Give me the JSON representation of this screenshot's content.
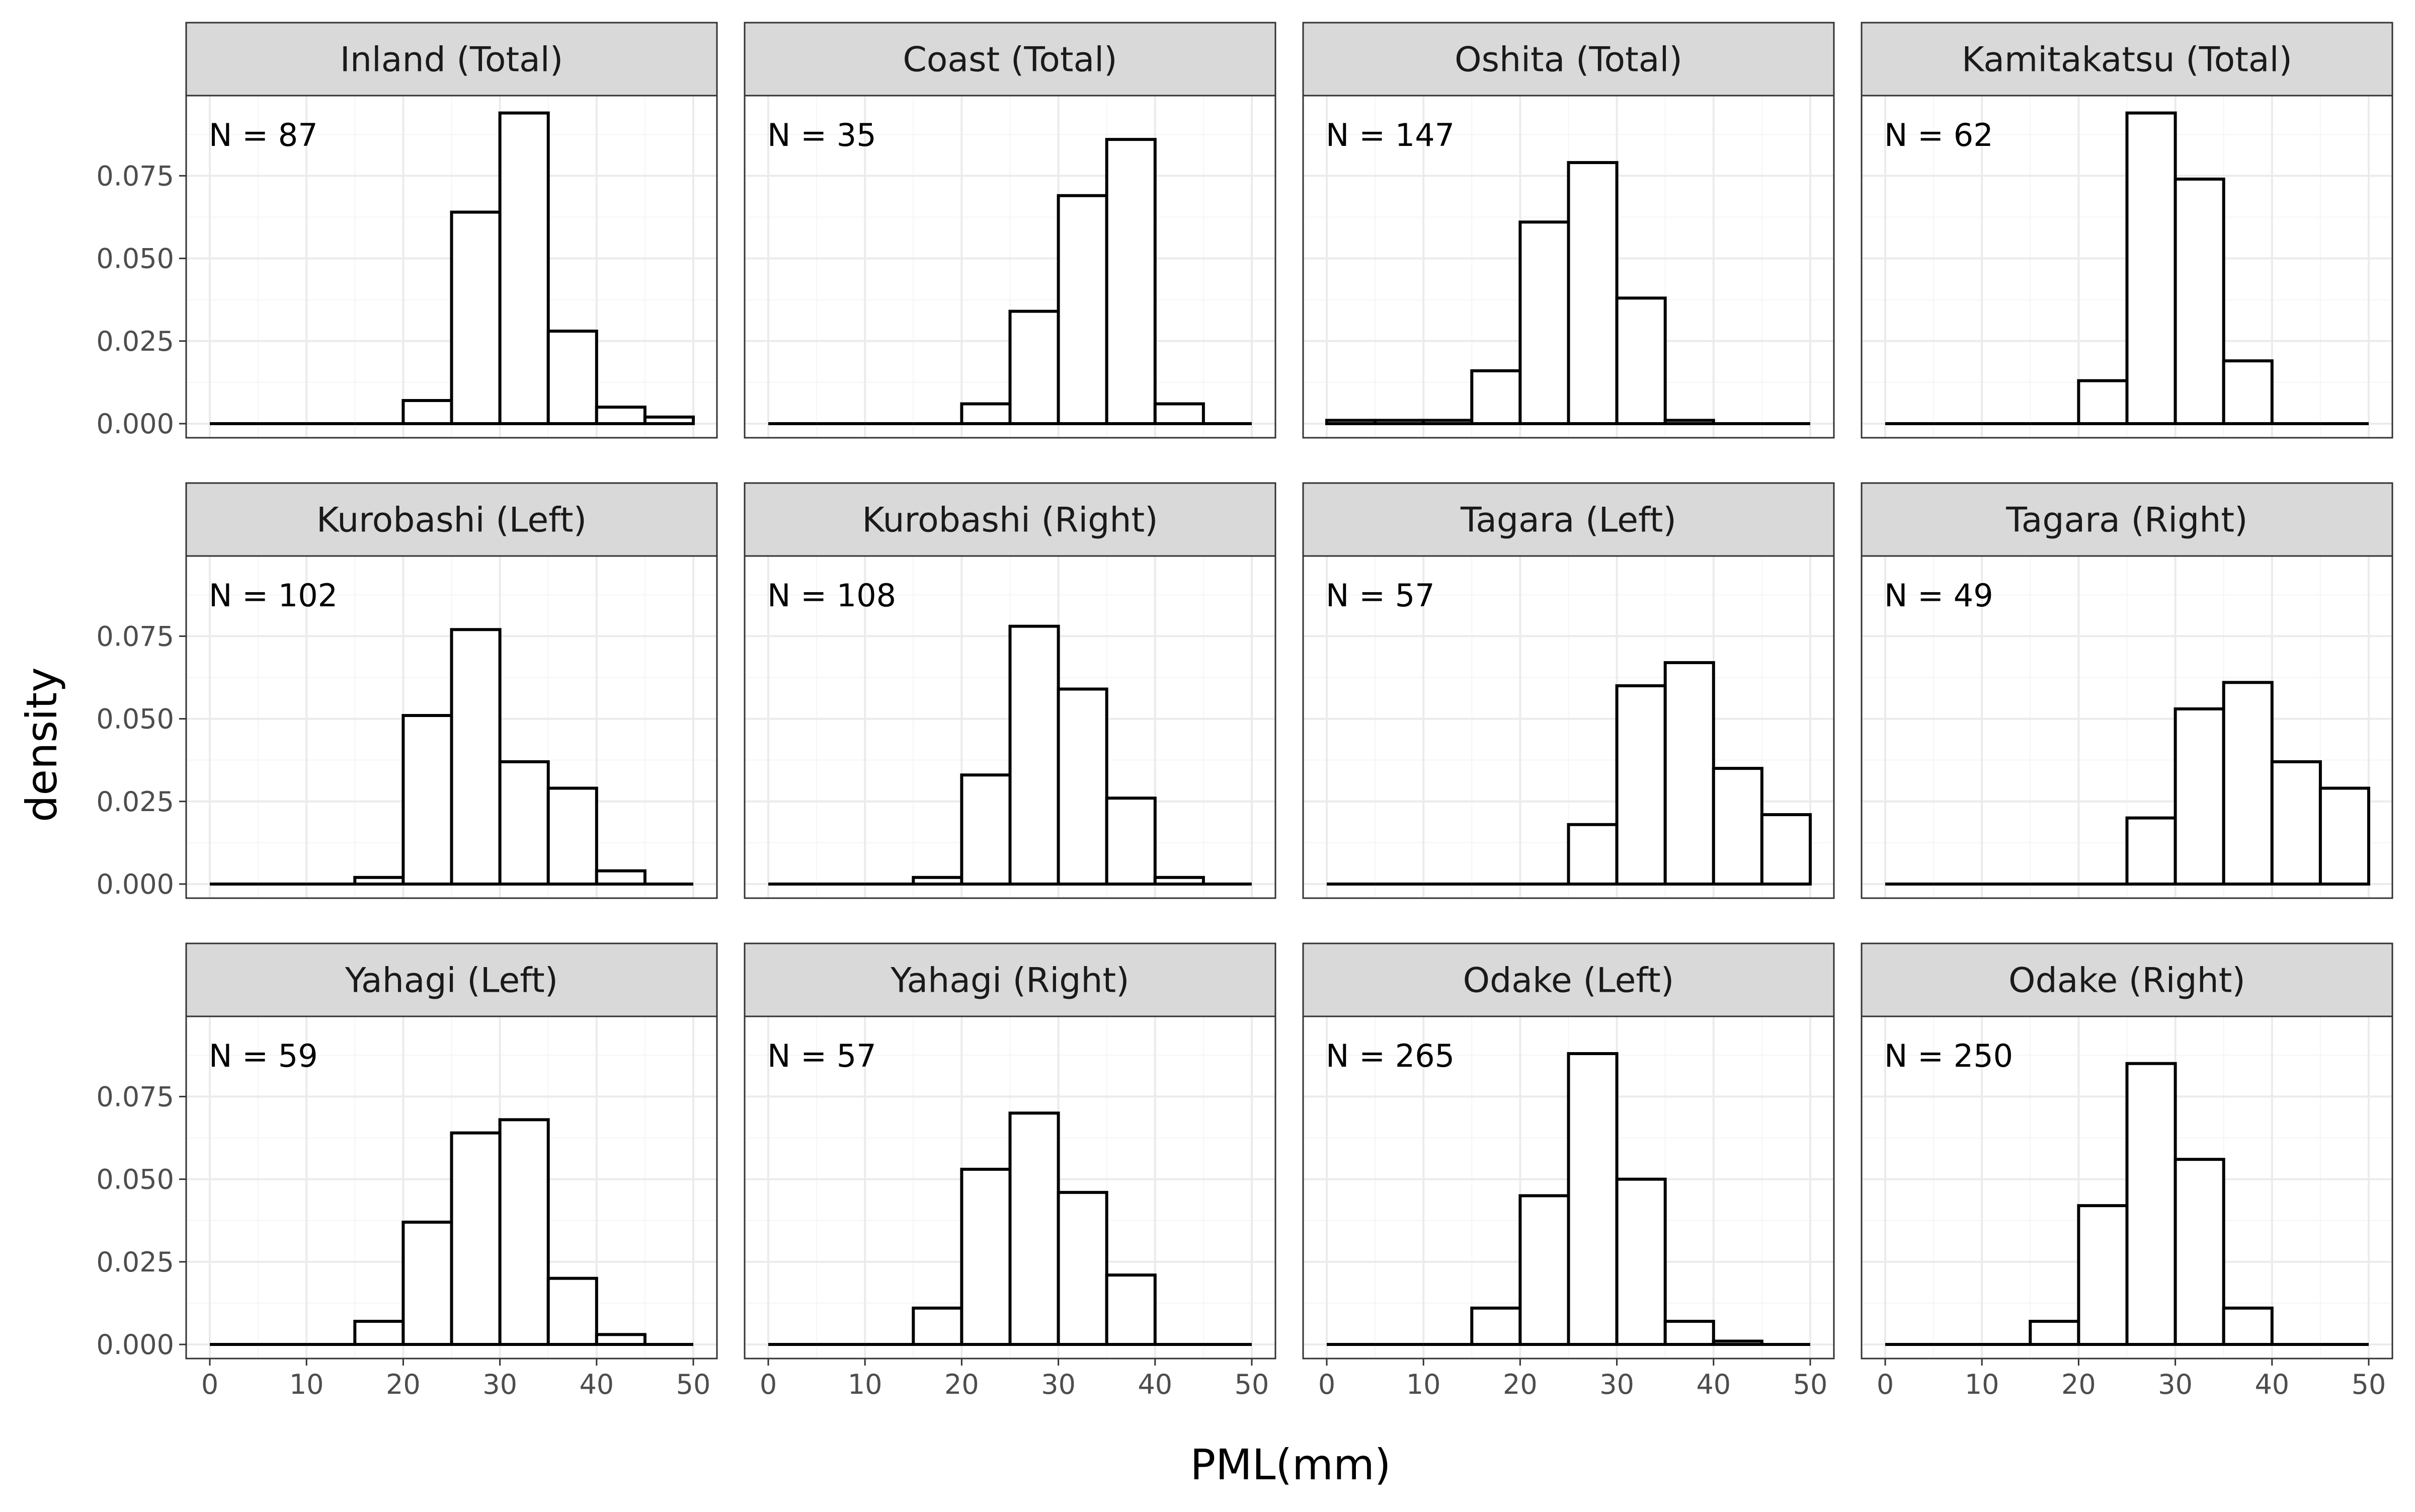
{
  "chart_data": {
    "type": "bar",
    "layout": "facet-grid 3x4",
    "bin_width": 5,
    "bin_starts": [
      0,
      5,
      10,
      15,
      20,
      25,
      30,
      35,
      40,
      45
    ],
    "xlabel": "PML(mm)",
    "ylabel": "density",
    "xlim": [
      0,
      50
    ],
    "ylim": [
      0,
      0.095
    ],
    "x_ticks": [
      "0",
      "10",
      "20",
      "30",
      "40",
      "50"
    ],
    "y_ticks": [
      "0.000",
      "0.025",
      "0.050",
      "0.075"
    ],
    "grid": true,
    "panels": [
      {
        "title": "Inland (Total)",
        "annotation": "N = 87",
        "values": [
          0,
          0,
          0,
          0,
          0.007,
          0.064,
          0.094,
          0.028,
          0.005,
          0.002
        ]
      },
      {
        "title": "Coast (Total)",
        "annotation": "N = 35",
        "values": [
          0,
          0,
          0,
          0,
          0.006,
          0.034,
          0.069,
          0.086,
          0.006,
          0
        ]
      },
      {
        "title": "Oshita (Total)",
        "annotation": "N = 147",
        "values": [
          0.001,
          0.001,
          0.001,
          0.016,
          0.061,
          0.079,
          0.038,
          0.001,
          0,
          0
        ]
      },
      {
        "title": "Kamitakatsu (Total)",
        "annotation": "N = 62",
        "values": [
          0,
          0,
          0,
          0,
          0.013,
          0.094,
          0.074,
          0.019,
          0,
          0
        ]
      },
      {
        "title": "Kurobashi (Left)",
        "annotation": "N = 102",
        "values": [
          0,
          0,
          0,
          0.002,
          0.051,
          0.077,
          0.037,
          0.029,
          0.004,
          0
        ]
      },
      {
        "title": "Kurobashi (Right)",
        "annotation": "N = 108",
        "values": [
          0,
          0,
          0,
          0.002,
          0.033,
          0.078,
          0.059,
          0.026,
          0.002,
          0
        ]
      },
      {
        "title": "Tagara (Left)",
        "annotation": "N = 57",
        "values": [
          0,
          0,
          0,
          0,
          0,
          0.018,
          0.06,
          0.067,
          0.035,
          0.021
        ]
      },
      {
        "title": "Tagara (Right)",
        "annotation": "N = 49",
        "values": [
          0,
          0,
          0,
          0,
          0,
          0.02,
          0.053,
          0.061,
          0.037,
          0.029
        ]
      },
      {
        "title": "Yahagi (Left)",
        "annotation": "N = 59",
        "values": [
          0,
          0,
          0,
          0.007,
          0.037,
          0.064,
          0.068,
          0.02,
          0.003,
          0
        ]
      },
      {
        "title": "Yahagi (Right)",
        "annotation": "N = 57",
        "values": [
          0,
          0,
          0,
          0.011,
          0.053,
          0.07,
          0.046,
          0.021,
          0,
          0
        ]
      },
      {
        "title": "Odake (Left)",
        "annotation": "N = 265",
        "values": [
          0,
          0,
          0,
          0.011,
          0.045,
          0.088,
          0.05,
          0.007,
          0.001,
          0
        ]
      },
      {
        "title": "Odake (Right)",
        "annotation": "N = 250",
        "values": [
          0,
          0,
          0,
          0.007,
          0.042,
          0.085,
          0.056,
          0.011,
          0,
          0
        ]
      }
    ]
  },
  "colors": {
    "strip_fill": "#d9d9d9",
    "bar_fill": "#ffffff",
    "bar_stroke": "#000000",
    "grid_major": "#ebebeb",
    "grid_minor": "#f5f5f5",
    "panel_border": "#333333",
    "tick_text": "#4d4d4d"
  }
}
